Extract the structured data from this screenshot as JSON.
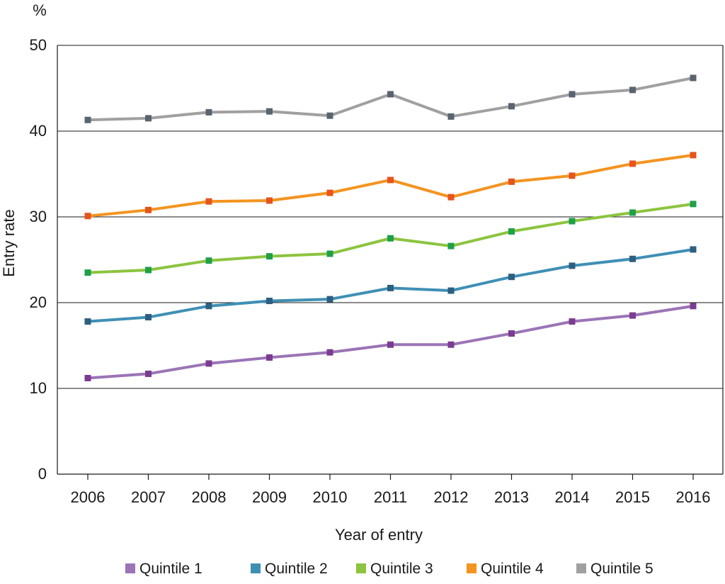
{
  "chart_data": {
    "type": "line",
    "title": "",
    "unit_label": "%",
    "xlabel": "Year of entry",
    "ylabel": "Entry rate",
    "x": [
      "2006",
      "2007",
      "2008",
      "2009",
      "2010",
      "2011",
      "2012",
      "2013",
      "2014",
      "2015",
      "2016"
    ],
    "yticks": [
      "0",
      "10",
      "20",
      "30",
      "40",
      "50"
    ],
    "ylim": [
      0,
      50
    ],
    "grid": true,
    "legend_position": "bottom",
    "series": [
      {
        "name": "Quintile 1",
        "color": "#9b74b6",
        "marker_color": "#7b3c91",
        "values": [
          11.2,
          11.7,
          12.9,
          13.6,
          14.2,
          15.1,
          15.1,
          16.4,
          17.8,
          18.5,
          19.6
        ]
      },
      {
        "name": "Quintile 2",
        "color": "#3f8fb5",
        "marker_color": "#2d5f80",
        "values": [
          17.8,
          18.3,
          19.6,
          20.2,
          20.4,
          21.7,
          21.4,
          23.0,
          24.3,
          25.1,
          26.2
        ]
      },
      {
        "name": "Quintile 3",
        "color": "#8cc43f",
        "marker_color": "#1fa04a",
        "values": [
          23.5,
          23.8,
          24.9,
          25.4,
          25.7,
          27.5,
          26.6,
          28.3,
          29.5,
          30.5,
          31.5
        ]
      },
      {
        "name": "Quintile 4",
        "color": "#f39420",
        "marker_color": "#e7541c",
        "values": [
          30.1,
          30.8,
          31.8,
          31.9,
          32.8,
          34.3,
          32.3,
          34.1,
          34.8,
          36.2,
          37.2
        ]
      },
      {
        "name": "Quintile 5",
        "color": "#a0a0a0",
        "marker_color": "#5a6470",
        "values": [
          41.3,
          41.5,
          42.2,
          42.3,
          41.8,
          44.3,
          41.7,
          42.9,
          44.3,
          44.8,
          46.2
        ]
      }
    ]
  }
}
